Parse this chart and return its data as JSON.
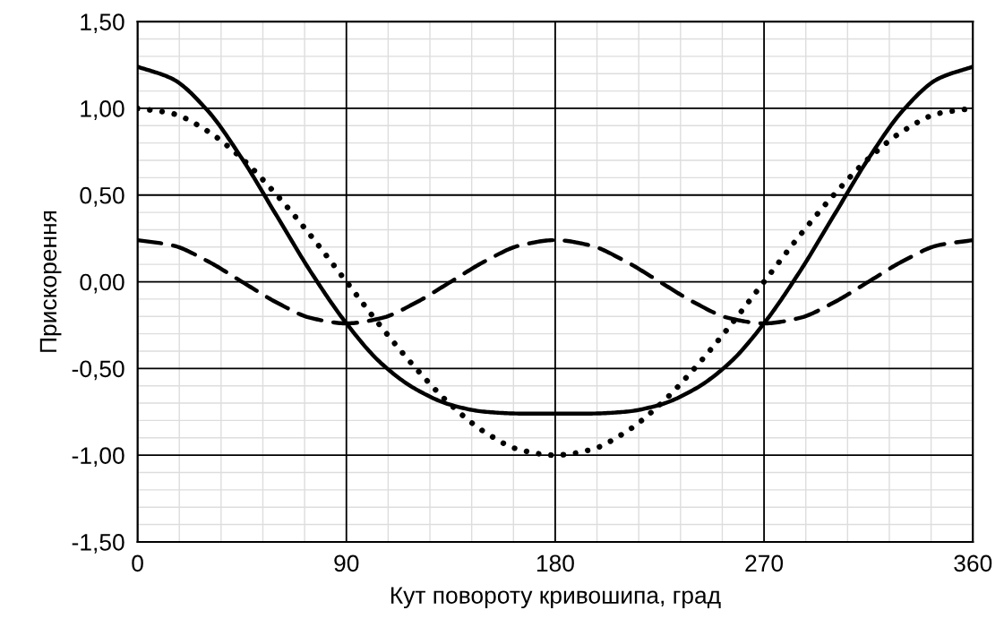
{
  "chart_data": {
    "type": "line",
    "xlabel": "Кут повороту кривошипа, град",
    "ylabel": "Прискорення",
    "x": [
      0,
      15,
      30,
      45,
      60,
      75,
      90,
      105,
      120,
      135,
      150,
      165,
      180,
      195,
      210,
      225,
      240,
      255,
      270,
      285,
      300,
      315,
      330,
      345,
      360
    ],
    "series": [
      {
        "color": "#000000",
        "line_style": "solid",
        "values": [
          1.24,
          1.17,
          0.99,
          0.71,
          0.38,
          0.05,
          -0.24,
          -0.47,
          -0.62,
          -0.71,
          -0.75,
          -0.76,
          -0.76,
          -0.76,
          -0.75,
          -0.71,
          -0.62,
          -0.47,
          -0.24,
          0.05,
          0.38,
          0.71,
          0.99,
          1.17,
          1.24
        ]
      },
      {
        "color": "#000000",
        "line_style": "dotted",
        "values": [
          1.0,
          0.97,
          0.87,
          0.71,
          0.5,
          0.26,
          0.0,
          -0.26,
          -0.5,
          -0.71,
          -0.87,
          -0.97,
          -1.0,
          -0.97,
          -0.87,
          -0.71,
          -0.5,
          -0.26,
          0.0,
          0.26,
          0.5,
          0.71,
          0.87,
          0.97,
          1.0
        ]
      },
      {
        "color": "#000000",
        "line_style": "dashed",
        "values": [
          0.24,
          0.21,
          0.12,
          0.0,
          -0.12,
          -0.21,
          -0.24,
          -0.21,
          -0.12,
          0.0,
          0.12,
          0.21,
          0.24,
          0.21,
          0.12,
          0.0,
          -0.12,
          -0.21,
          -0.24,
          -0.21,
          -0.12,
          0.0,
          0.12,
          0.21,
          0.24
        ]
      }
    ],
    "xlim": [
      0,
      360
    ],
    "xticks": [
      0,
      90,
      180,
      270,
      360
    ],
    "ylim": [
      -1.5,
      1.5
    ],
    "yticks": [
      {
        "value": -1.5,
        "label": "-1,50"
      },
      {
        "value": -1.0,
        "label": "-1,00"
      },
      {
        "value": -0.5,
        "label": "-0,50"
      },
      {
        "value": 0,
        "label": "0,00"
      },
      {
        "value": 0.5,
        "label": "0,50"
      },
      {
        "value": 1.0,
        "label": "1,00"
      },
      {
        "value": 1.5,
        "label": "1,50"
      }
    ],
    "grid": true,
    "marker": "none"
  }
}
